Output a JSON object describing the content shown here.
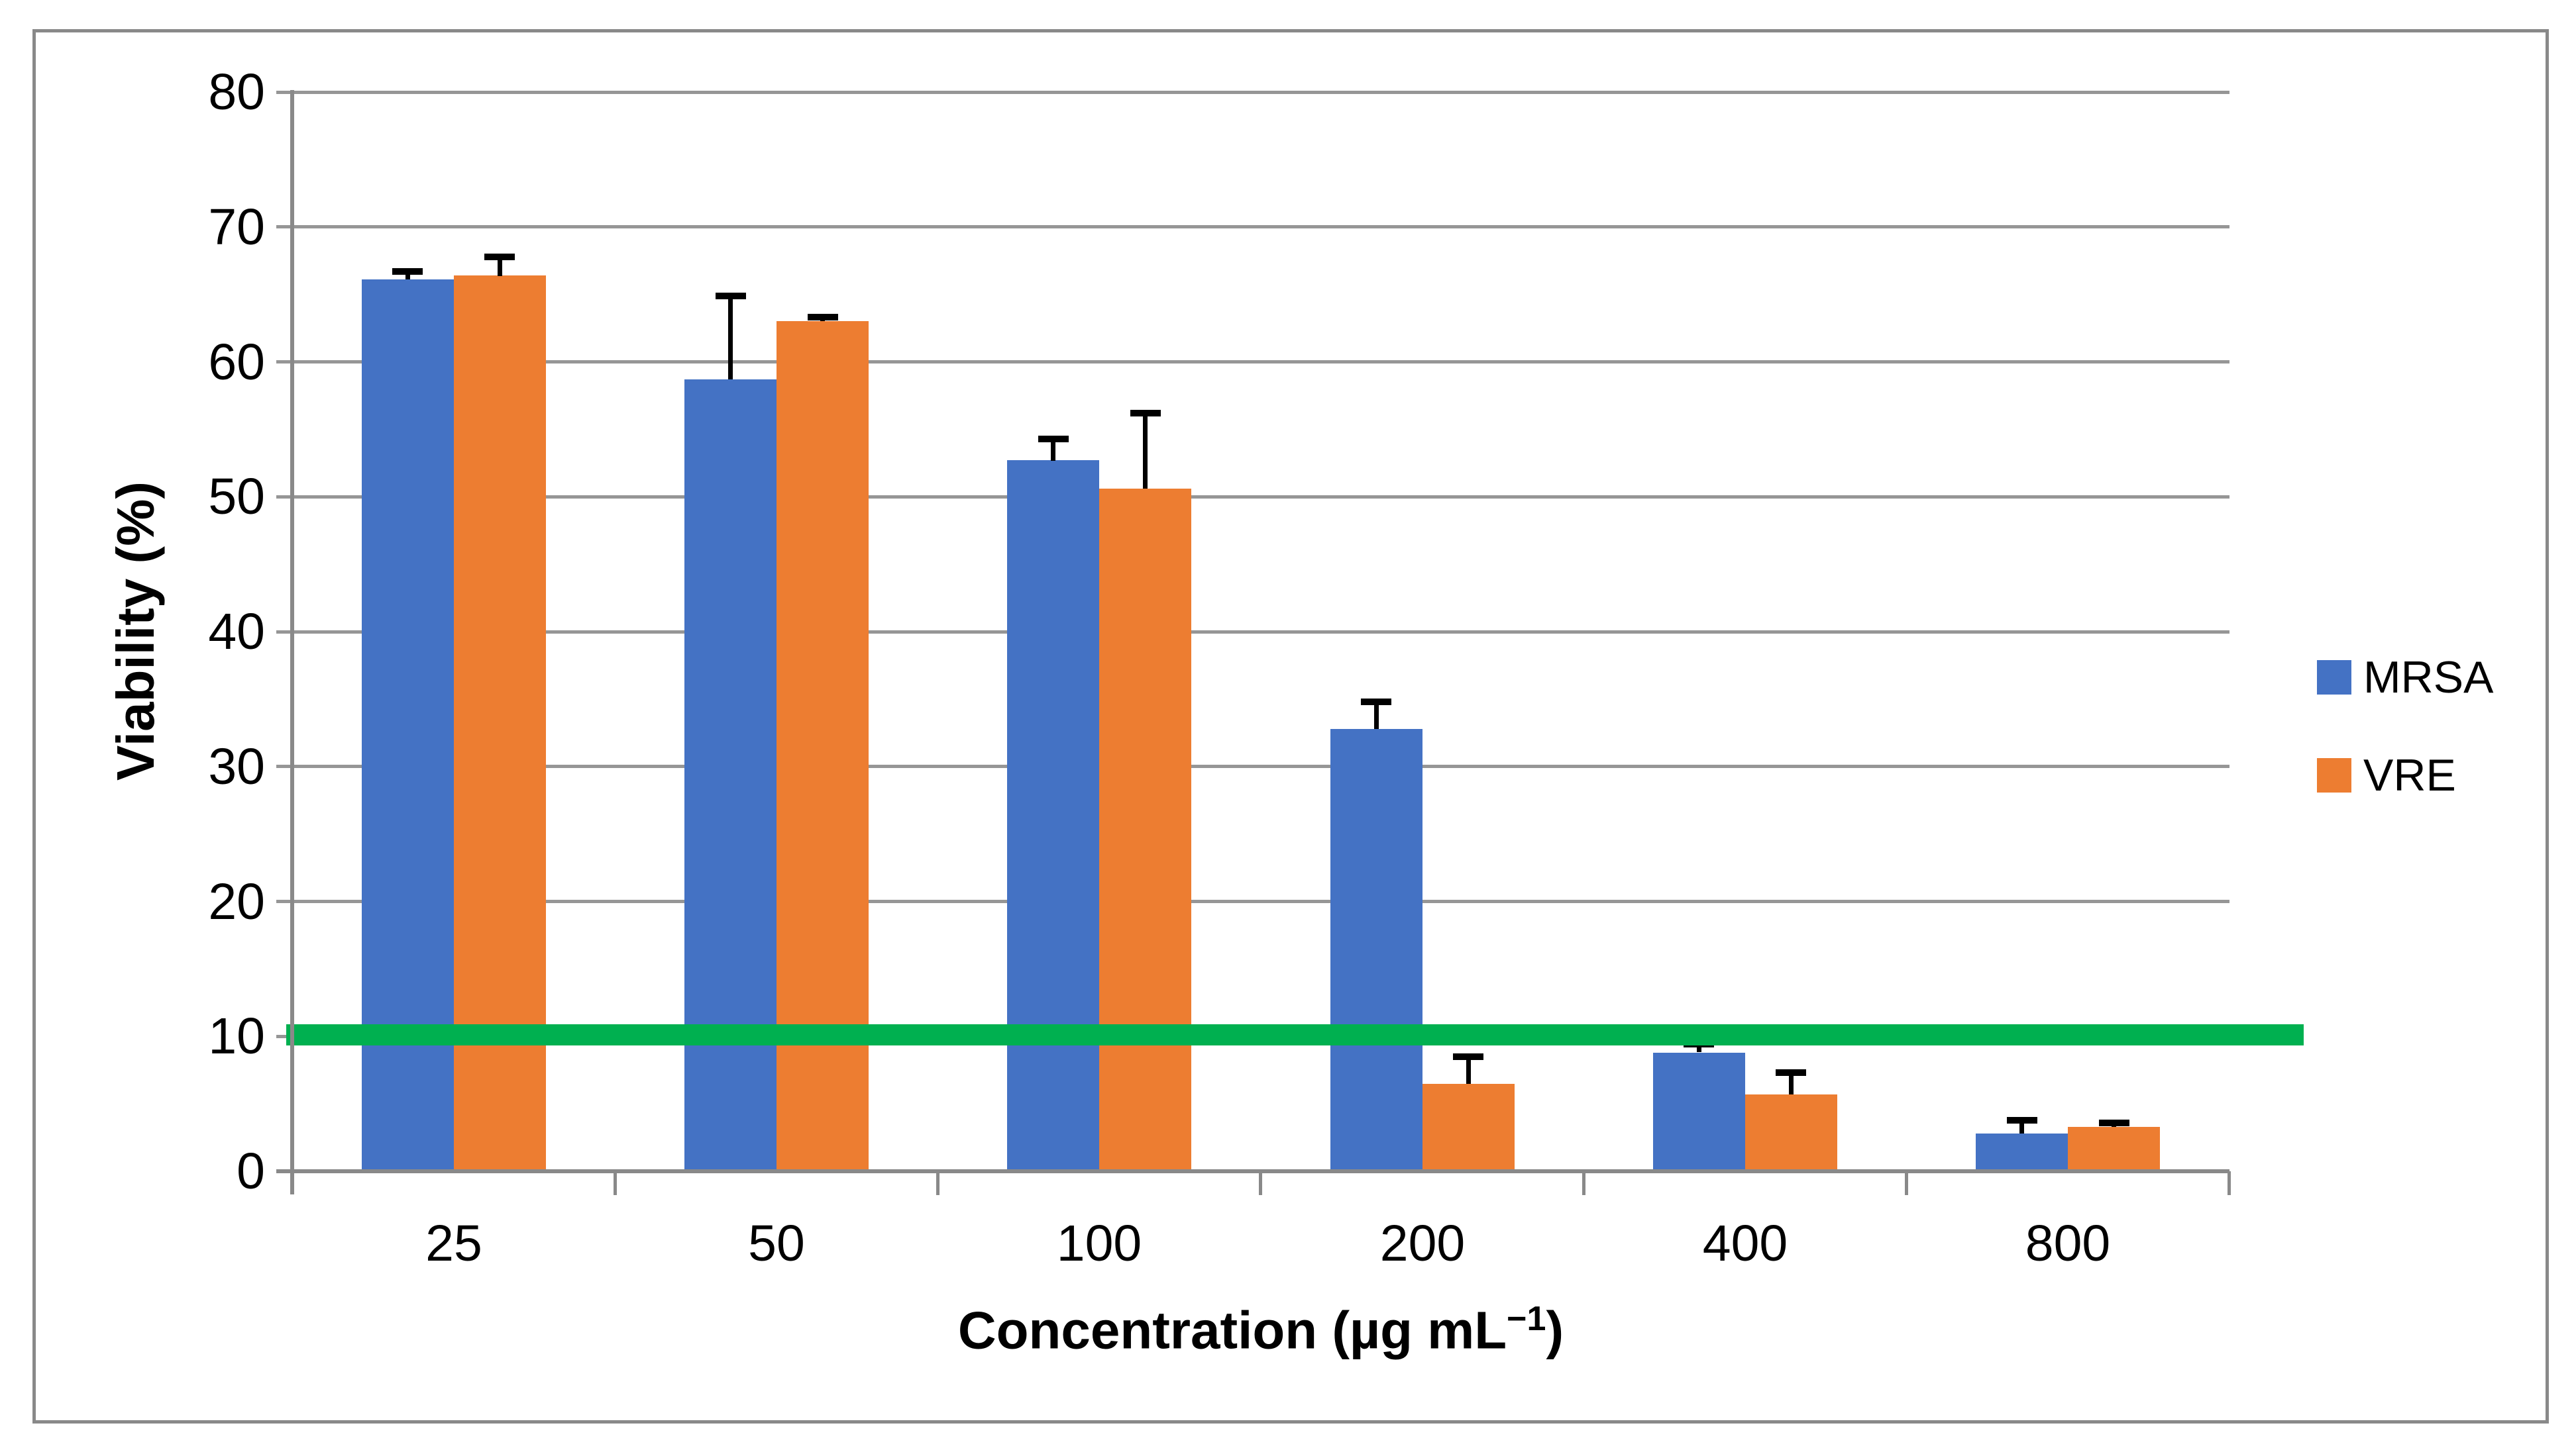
{
  "chart_data": {
    "type": "bar",
    "title": "",
    "categories": [
      "25",
      "50",
      "100",
      "200",
      "400",
      "800"
    ],
    "series": [
      {
        "name": "MRSA",
        "color": "#4472C4",
        "values": [
          66.1,
          58.7,
          52.7,
          32.8,
          8.8,
          2.8
        ],
        "errors_up": [
          0.6,
          6.2,
          1.6,
          2.0,
          0.6,
          1.0
        ]
      },
      {
        "name": "VRE",
        "color": "#ED7D31",
        "values": [
          66.4,
          63.0,
          50.6,
          6.5,
          5.7,
          3.3
        ],
        "errors_up": [
          1.4,
          0.3,
          5.6,
          2.0,
          1.6,
          0.3
        ]
      }
    ],
    "error_bar_color": "#000000",
    "xlabel_main": "Concentration (µg mL",
    "xlabel_sup": "−1",
    "xlabel_end": ")",
    "ylabel": "Viability (%)",
    "ylim": [
      0,
      80
    ],
    "ytick_step": 10,
    "yticks": [
      0,
      10,
      20,
      30,
      40,
      50,
      60,
      70,
      80
    ],
    "grid": "horizontal",
    "legend_position": "right",
    "threshold_line": {
      "value": 10.1,
      "color": "#00B050"
    }
  }
}
